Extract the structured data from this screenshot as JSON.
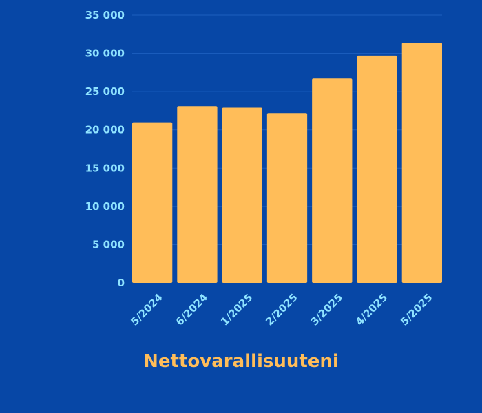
{
  "chart_data": {
    "type": "bar",
    "title": "Nettovarallisuuteni",
    "xlabel": "",
    "ylabel": "",
    "categories": [
      "5/2024",
      "6/2024",
      "1/2025",
      "2/2025",
      "3/2025",
      "4/2025",
      "5/2025"
    ],
    "values": [
      21000,
      23100,
      22900,
      22200,
      26700,
      29700,
      31400
    ],
    "ylim": [
      0,
      35000
    ],
    "yticks": [
      0,
      5000,
      10000,
      15000,
      20000,
      25000,
      30000,
      35000
    ],
    "ytick_labels": [
      "0",
      "5 000",
      "10 000",
      "15 000",
      "20 000",
      "25 000",
      "30 000",
      "35 000"
    ],
    "grid": true,
    "legend": "none",
    "colors": {
      "background": "#0747a6",
      "bar": "#ffbd59",
      "tick_text": "#8fe3ff",
      "title": "#ffbd59",
      "grid": "#1d5fbf"
    }
  }
}
